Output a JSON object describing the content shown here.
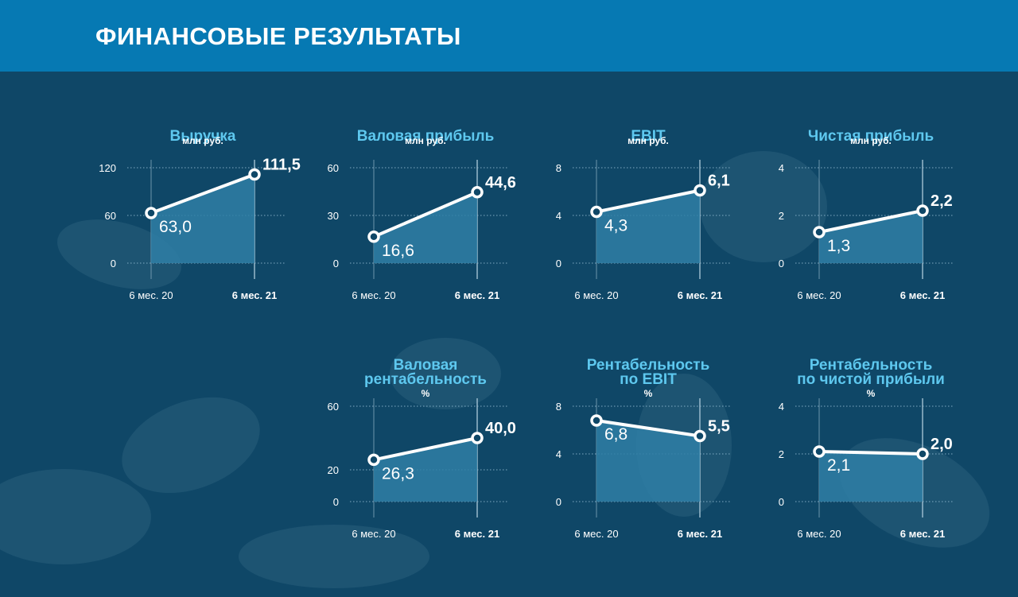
{
  "header": {
    "title": "ФИНАНСОВЫЕ РЕЗУЛЬТАТЫ"
  },
  "colors": {
    "header_bg": "#0679b3",
    "background": "#0f4767",
    "title": "#5ec8ef",
    "area": "#2f7fa6",
    "line": "#ffffff"
  },
  "chart_data": [
    {
      "type": "line",
      "id": "revenue",
      "title": [
        "Выручка"
      ],
      "unit": "млн руб.",
      "categories": [
        "6 мес. 20",
        "6 мес. 21"
      ],
      "values": [
        63.0,
        111.5
      ],
      "value_labels": [
        "63,0",
        "111,5"
      ],
      "yticks": [
        0,
        60,
        120
      ],
      "ylim": [
        0,
        120
      ]
    },
    {
      "type": "line",
      "id": "gross-profit",
      "title": [
        "Валовая прибыль"
      ],
      "unit": "млн руб.",
      "categories": [
        "6 мес. 20",
        "6 мес. 21"
      ],
      "values": [
        16.6,
        44.6
      ],
      "value_labels": [
        "16,6",
        "44,6"
      ],
      "yticks": [
        0,
        30,
        60
      ],
      "ylim": [
        0,
        60
      ]
    },
    {
      "type": "line",
      "id": "ebit",
      "title": [
        "EBIT"
      ],
      "unit": "млн руб.",
      "categories": [
        "6 мес. 20",
        "6 мес. 21"
      ],
      "values": [
        4.3,
        6.1
      ],
      "value_labels": [
        "4,3",
        "6,1"
      ],
      "yticks": [
        0,
        4,
        8
      ],
      "ylim": [
        0,
        8
      ]
    },
    {
      "type": "line",
      "id": "net-profit",
      "title": [
        "Чистая прибыль"
      ],
      "unit": "млн руб.",
      "categories": [
        "6 мес. 20",
        "6 мес. 21"
      ],
      "values": [
        1.3,
        2.2
      ],
      "value_labels": [
        "1,3",
        "2,2"
      ],
      "yticks": [
        0,
        2,
        4
      ],
      "ylim": [
        0,
        4
      ]
    },
    {
      "type": "line",
      "id": "gross-margin",
      "title": [
        "Валовая",
        "рентабельность"
      ],
      "unit": "%",
      "categories": [
        "6 мес. 20",
        "6 мес. 21"
      ],
      "values": [
        26.3,
        40.0
      ],
      "value_labels": [
        "26,3",
        "40,0"
      ],
      "yticks": [
        0,
        20,
        60
      ],
      "ylim": [
        0,
        60
      ]
    },
    {
      "type": "line",
      "id": "ebit-margin",
      "title": [
        "Рентабельность",
        "по EBIT"
      ],
      "unit": "%",
      "categories": [
        "6 мес. 20",
        "6 мес. 21"
      ],
      "values": [
        6.8,
        5.5
      ],
      "value_labels": [
        "6,8",
        "5,5"
      ],
      "yticks": [
        0,
        4,
        8
      ],
      "ylim": [
        0,
        8
      ]
    },
    {
      "type": "line",
      "id": "net-margin",
      "title": [
        "Рентабельность",
        "по чистой прибыли"
      ],
      "unit": "%",
      "categories": [
        "6 мес. 20",
        "6 мес. 21"
      ],
      "values": [
        2.1,
        2.0
      ],
      "value_labels": [
        "2,1",
        "2,0"
      ],
      "yticks": [
        0,
        2,
        4
      ],
      "ylim": [
        0,
        4
      ]
    }
  ]
}
